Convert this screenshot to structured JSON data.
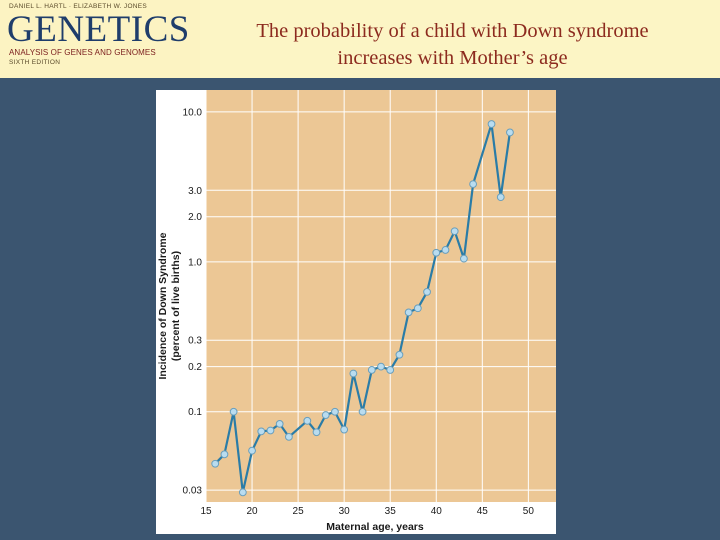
{
  "header": {
    "authors": "DANIEL L. HARTL · ELIZABETH W. JONES",
    "book_title": "GENETICS",
    "book_subtitle": "ANALYSIS OF GENES AND GENOMES",
    "edition": "SIXTH EDITION",
    "slide_title_line1": "The probability of a child with Down syndrome",
    "slide_title_line2": "increases with Mother’s age"
  },
  "colors": {
    "slide_background": "#3b5570",
    "header_background": "#fcf5c5",
    "title_text": "#8c2a1e",
    "plot_background": "#ecc795",
    "grid": "#ffffff",
    "series_line": "#2a7ca7",
    "marker_fill": "#b9dcef"
  },
  "chart_data": {
    "type": "line",
    "title": "",
    "xlabel": "Maternal age, years",
    "ylabel_line1": "Incidence of Down Syndrome",
    "ylabel_line2": "(percent of live births)",
    "xlim": [
      15,
      53
    ],
    "ylim": [
      0.025,
      14
    ],
    "y_scale": "log",
    "grid": true,
    "x_ticks": [
      15,
      20,
      25,
      30,
      35,
      40,
      45,
      50
    ],
    "x_tick_labels": [
      "15",
      "20",
      "25",
      "30",
      "35",
      "40",
      "45",
      "50"
    ],
    "y_ticks": [
      0.03,
      0.1,
      0.2,
      0.3,
      1.0,
      2.0,
      3.0,
      10.0
    ],
    "y_tick_labels": [
      "0.03",
      "0.1",
      "0.2",
      "0.3",
      "1.0",
      "2.0",
      "3.0",
      "10.0"
    ],
    "series": [
      {
        "x": [
          16,
          17,
          18,
          19,
          20,
          21,
          22,
          23,
          24,
          26,
          27,
          28,
          29,
          30,
          31,
          32,
          33,
          34,
          35,
          36,
          37,
          38,
          39,
          40,
          41,
          42,
          43,
          44,
          46,
          47,
          48
        ],
        "values": [
          0.045,
          0.052,
          0.1,
          0.029,
          0.055,
          0.074,
          0.075,
          0.083,
          0.068,
          0.087,
          0.073,
          0.095,
          0.1,
          0.076,
          0.18,
          0.1,
          0.19,
          0.2,
          0.19,
          0.24,
          0.46,
          0.49,
          0.63,
          1.15,
          1.2,
          1.6,
          1.05,
          3.3,
          8.3,
          2.7,
          7.3
        ]
      }
    ]
  }
}
